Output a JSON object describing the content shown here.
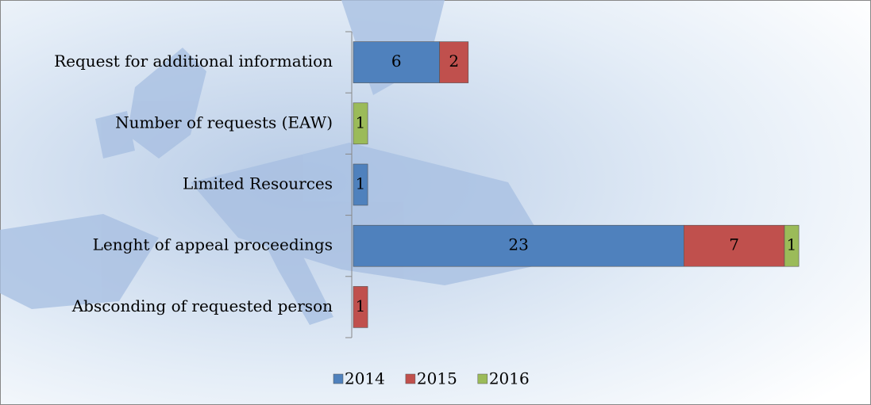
{
  "chart_data": {
    "type": "stacked-bar-horizontal",
    "categories": [
      "Request for additional information",
      "Number of requests (EAW)",
      "Limited Resources",
      "Lenght of appeal proceedings",
      "Absconding of requested person"
    ],
    "series": [
      {
        "name": "2014",
        "color": "#4f81bd",
        "values": [
          6,
          null,
          1,
          23,
          null
        ]
      },
      {
        "name": "2015",
        "color": "#c0504d",
        "values": [
          2,
          null,
          null,
          7,
          1
        ]
      },
      {
        "name": "2016",
        "color": "#9bbb59",
        "values": [
          null,
          1,
          null,
          1,
          null
        ]
      }
    ],
    "legend": "bottom"
  }
}
